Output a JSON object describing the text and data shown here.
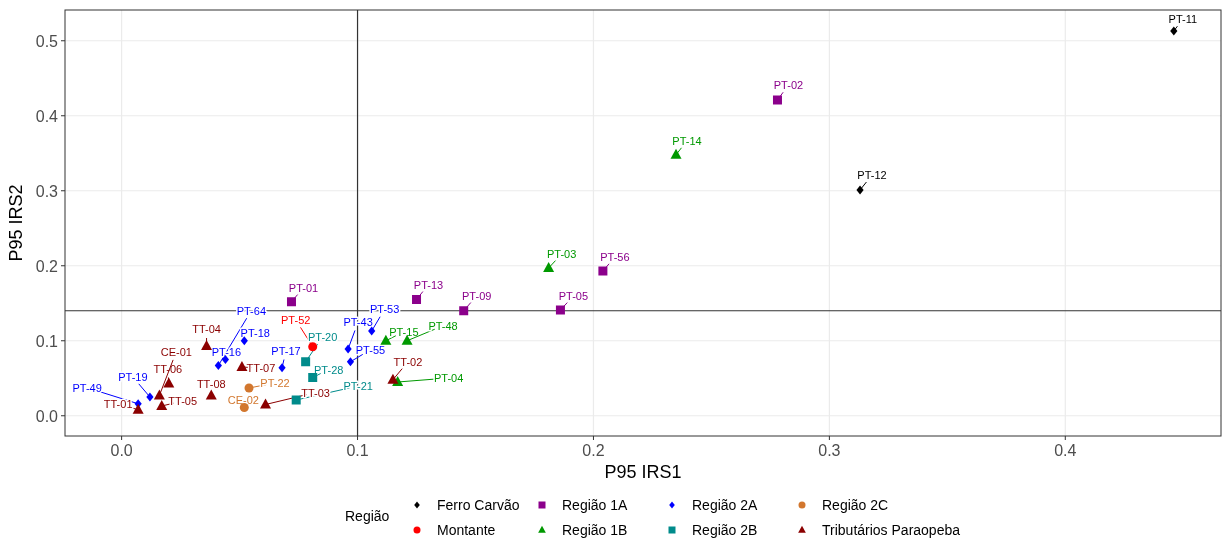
{
  "chart_data": {
    "type": "scatter",
    "xlabel": "P95 IRS1",
    "ylabel": "P95 IRS2",
    "legend_title": "Região",
    "legend": "bottom",
    "grid": true,
    "xlim": [
      -0.024,
      0.466
    ],
    "ylim": [
      -0.027,
      0.541
    ],
    "xticks": [
      {
        "value": 0,
        "label": "0.0"
      },
      0.1,
      0.2,
      0.3,
      0.4
    ],
    "yticks": [
      {
        "value": 0,
        "label": "0.0"
      },
      0.1,
      0.2,
      0.3,
      0.4,
      0.5
    ],
    "ref_lines": [
      {
        "axis": "x",
        "value": 0.1,
        "color": "#333333"
      },
      {
        "axis": "y",
        "value": 0.14,
        "color": "#333333"
      }
    ],
    "series": [
      {
        "name": "Ferro Carvão",
        "color": "#000000",
        "marker": "diamond",
        "x": [
          0.446,
          0.313
        ],
        "values": [
          0.513,
          0.301
        ]
      },
      {
        "name": "Região 1A",
        "color": "#8b008b",
        "marker": "square",
        "x": [
          0.278,
          0.204,
          0.125,
          0.145,
          0.186,
          0.072
        ],
        "values": [
          0.421,
          0.193,
          0.155,
          0.14,
          0.141,
          0.152
        ]
      },
      {
        "name": "Região 2A",
        "color": "#0000ff",
        "marker": "diamond",
        "x": [
          0.007,
          0.012,
          0.041,
          0.044,
          0.052,
          0.068,
          0.096,
          0.097,
          0.106
        ],
        "values": [
          0.016,
          0.025,
          0.067,
          0.075,
          0.1,
          0.064,
          0.089,
          0.072,
          0.113
        ]
      },
      {
        "name": "Região 2C",
        "color": "#d2772e",
        "marker": "circle",
        "x": [
          0.054,
          0.052
        ],
        "values": [
          0.037,
          0.011
        ]
      },
      {
        "name": "Montante",
        "color": "#ff0000",
        "marker": "circle",
        "x": [
          0.081
        ],
        "values": [
          0.092
        ]
      },
      {
        "name": "Região 1B",
        "color": "#009900",
        "marker": "triangle",
        "x": [
          0.235,
          0.181,
          0.112,
          0.121,
          0.117
        ],
        "values": [
          0.348,
          0.197,
          0.1,
          0.1,
          0.045
        ]
      },
      {
        "name": "Região 2B",
        "color": "#008b8b",
        "marker": "square",
        "x": [
          0.078,
          0.081,
          0.074
        ],
        "values": [
          0.072,
          0.051,
          0.021
        ]
      },
      {
        "name": "Tributários Paraopeba",
        "color": "#8b0000",
        "marker": "triangle",
        "x": [
          0.036,
          0.051,
          0.038,
          0.02,
          0.016,
          0.017,
          0.007,
          0.061,
          0.115
        ],
        "values": [
          0.093,
          0.065,
          0.027,
          0.043,
          0.027,
          0.013,
          0.008,
          0.015,
          0.048
        ]
      }
    ],
    "annotations": [
      {
        "text": "PT-11",
        "x": 0.446,
        "y": 0.513
      },
      {
        "text": "PT-12",
        "x": 0.313,
        "y": 0.301
      },
      {
        "text": "PT-02",
        "x": 0.278,
        "y": 0.421
      },
      {
        "text": "PT-56",
        "x": 0.204,
        "y": 0.193
      },
      {
        "text": "PT-13",
        "x": 0.125,
        "y": 0.155
      },
      {
        "text": "PT-09",
        "x": 0.145,
        "y": 0.14
      },
      {
        "text": "PT-05",
        "x": 0.186,
        "y": 0.141
      },
      {
        "text": "PT-01",
        "x": 0.072,
        "y": 0.152
      },
      {
        "text": "PT-49",
        "x": 0.007,
        "y": 0.016
      },
      {
        "text": "PT-19",
        "x": 0.012,
        "y": 0.025
      },
      {
        "text": "PT-64",
        "x": 0.041,
        "y": 0.067
      },
      {
        "text": "PT-16",
        "x": 0.044,
        "y": 0.075
      },
      {
        "text": "PT-18",
        "x": 0.052,
        "y": 0.1
      },
      {
        "text": "PT-17",
        "x": 0.068,
        "y": 0.064
      },
      {
        "text": "PT-43",
        "x": 0.096,
        "y": 0.089
      },
      {
        "text": "PT-55",
        "x": 0.097,
        "y": 0.072
      },
      {
        "text": "PT-53",
        "x": 0.106,
        "y": 0.113
      },
      {
        "text": "PT-22",
        "x": 0.054,
        "y": 0.037
      },
      {
        "text": "CE-02",
        "x": 0.052,
        "y": 0.011
      },
      {
        "text": "PT-52",
        "x": 0.081,
        "y": 0.092
      },
      {
        "text": "PT-14",
        "x": 0.235,
        "y": 0.348
      },
      {
        "text": "PT-03",
        "x": 0.181,
        "y": 0.197
      },
      {
        "text": "PT-15",
        "x": 0.112,
        "y": 0.1
      },
      {
        "text": "PT-48",
        "x": 0.121,
        "y": 0.1
      },
      {
        "text": "PT-04",
        "x": 0.117,
        "y": 0.045
      },
      {
        "text": "PT-20",
        "x": 0.078,
        "y": 0.072
      },
      {
        "text": "PT-28",
        "x": 0.081,
        "y": 0.051
      },
      {
        "text": "PT-21",
        "x": 0.074,
        "y": 0.021
      },
      {
        "text": "TT-04",
        "x": 0.036,
        "y": 0.093
      },
      {
        "text": "TT-07",
        "x": 0.051,
        "y": 0.065
      },
      {
        "text": "TT-08",
        "x": 0.038,
        "y": 0.027
      },
      {
        "text": "TT-06",
        "x": 0.02,
        "y": 0.043
      },
      {
        "text": "CE-01",
        "x": 0.016,
        "y": 0.027
      },
      {
        "text": "TT-05",
        "x": 0.017,
        "y": 0.013
      },
      {
        "text": "TT-01",
        "x": 0.007,
        "y": 0.008
      },
      {
        "text": "TT-03",
        "x": 0.061,
        "y": 0.015
      },
      {
        "text": "TT-02",
        "x": 0.115,
        "y": 0.048
      }
    ]
  }
}
